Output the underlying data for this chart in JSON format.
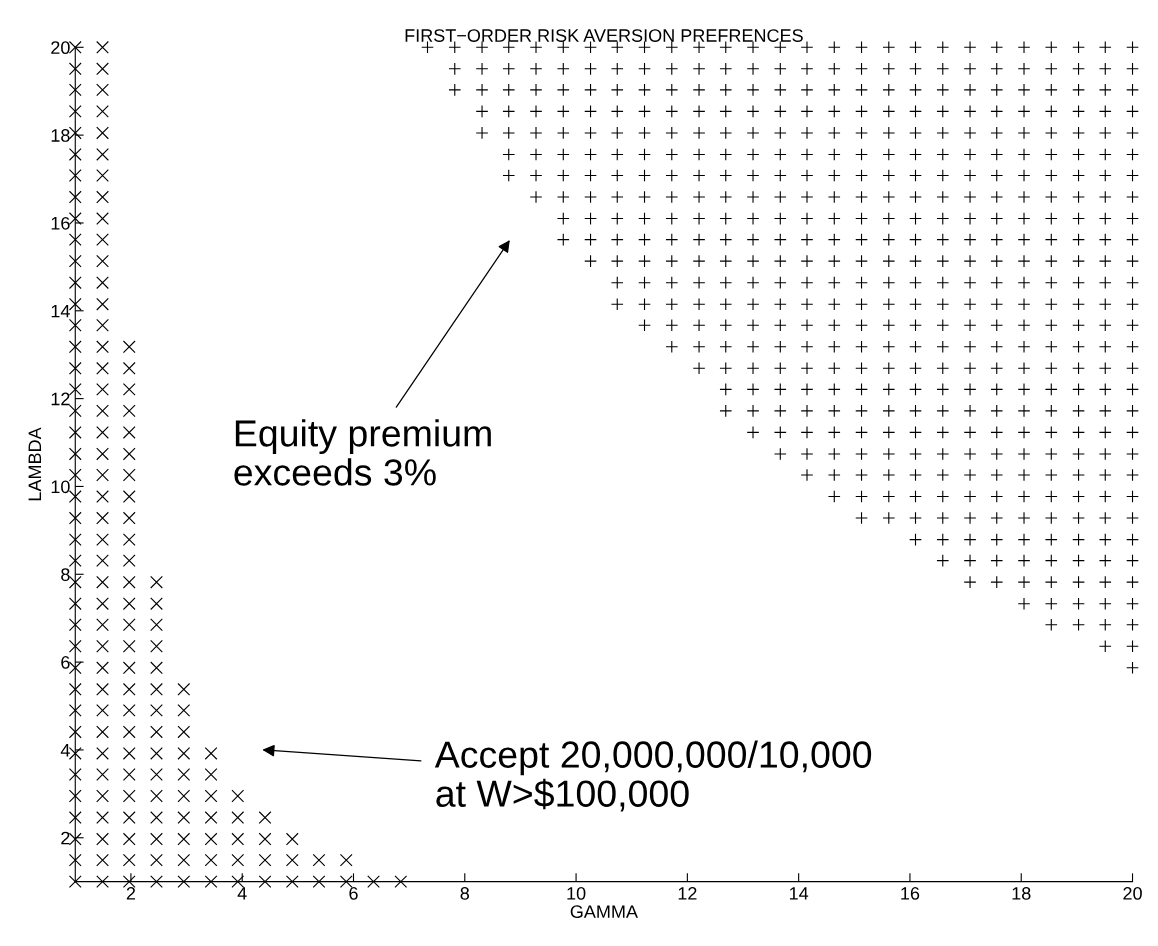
{
  "chart_data": {
    "type": "scatter",
    "title": "FIRST−ORDER RISK AVERSION PREFRENCES",
    "xlabel": "GAMMA",
    "ylabel": "LAMBDA",
    "xlim": [
      1,
      20
    ],
    "ylim": [
      1,
      20
    ],
    "xticks": [
      2,
      4,
      6,
      8,
      10,
      12,
      14,
      16,
      18,
      20
    ],
    "yticks": [
      2,
      4,
      6,
      8,
      10,
      12,
      14,
      16,
      18,
      20
    ],
    "grid": false,
    "annotations": [
      "Equity premium\nexceeds 3%",
      "Accept 20,000,000/10,000\nat W>$100,000"
    ],
    "series": [
      {
        "color": "#000000",
        "marker": "cross",
        "x": [
          1,
          1,
          1,
          1,
          1,
          1,
          1,
          1,
          1,
          1,
          1,
          1,
          1,
          1,
          1,
          1,
          1,
          1,
          1,
          1,
          1,
          1,
          1,
          1,
          1,
          1,
          1,
          1,
          1,
          1,
          1,
          1,
          1,
          1,
          1,
          1,
          1,
          1,
          1,
          1,
          1.49,
          1.49,
          1.49,
          1.49,
          1.49,
          1.49,
          1.49,
          1.49,
          1.49,
          1.49,
          1.49,
          1.49,
          1.49,
          1.49,
          1.49,
          1.49,
          1.49,
          1.49,
          1.49,
          1.49,
          1.49,
          1.49,
          1.49,
          1.49,
          1.49,
          1.49,
          1.49,
          1.49,
          1.49,
          1.49,
          1.49,
          1.49,
          1.49,
          1.49,
          1.49,
          1.49,
          1.49,
          1.49,
          1.49,
          1.49,
          1.97,
          1.97,
          1.97,
          1.97,
          1.97,
          1.97,
          1.97,
          1.97,
          1.97,
          1.97,
          1.97,
          1.97,
          1.97,
          1.97,
          1.97,
          1.97,
          1.97,
          1.97,
          1.97,
          1.97,
          1.97,
          1.97,
          1.97,
          1.97,
          1.97,
          1.97,
          2.46,
          2.46,
          2.46,
          2.46,
          2.46,
          2.46,
          2.46,
          2.46,
          2.46,
          2.46,
          2.46,
          2.46,
          2.46,
          2.46,
          2.46,
          2.95,
          2.95,
          2.95,
          2.95,
          2.95,
          2.95,
          2.95,
          2.95,
          2.95,
          2.95,
          3.44,
          3.44,
          3.44,
          3.44,
          3.44,
          3.44,
          3.44,
          3.92,
          3.92,
          3.92,
          3.92,
          3.92,
          4.41,
          4.41,
          4.41,
          4.41,
          4.9,
          4.9,
          4.9,
          5.38,
          5.38,
          5.87,
          5.87,
          6.36,
          6.85
        ],
        "values": [
          1,
          1.49,
          1.97,
          2.46,
          2.95,
          3.44,
          3.92,
          4.41,
          4.9,
          5.38,
          5.87,
          6.36,
          6.85,
          7.33,
          7.82,
          8.31,
          8.79,
          9.28,
          9.77,
          10.26,
          10.74,
          11.23,
          11.72,
          12.21,
          12.69,
          13.18,
          13.67,
          14.15,
          14.64,
          15.13,
          15.62,
          16.1,
          16.59,
          17.08,
          17.56,
          18.05,
          18.54,
          19.03,
          19.51,
          20,
          1,
          1.49,
          1.97,
          2.46,
          2.95,
          3.44,
          3.92,
          4.41,
          4.9,
          5.38,
          5.87,
          6.36,
          6.85,
          7.33,
          7.82,
          8.31,
          8.79,
          9.28,
          9.77,
          10.26,
          10.74,
          11.23,
          11.72,
          12.21,
          12.69,
          13.18,
          13.67,
          14.15,
          14.64,
          15.13,
          15.62,
          16.1,
          16.59,
          17.08,
          17.56,
          18.05,
          18.54,
          19.03,
          19.51,
          20,
          1,
          1.49,
          1.97,
          2.46,
          2.95,
          3.44,
          3.92,
          4.41,
          4.9,
          5.38,
          5.87,
          6.36,
          6.85,
          7.33,
          7.82,
          8.31,
          8.79,
          9.28,
          9.77,
          10.26,
          10.74,
          11.23,
          11.72,
          12.21,
          12.69,
          13.18,
          1,
          1.49,
          1.97,
          2.46,
          2.95,
          3.44,
          3.92,
          4.41,
          4.9,
          5.38,
          5.87,
          6.36,
          6.85,
          7.33,
          7.82,
          1,
          1.49,
          1.97,
          2.46,
          2.95,
          3.44,
          3.92,
          4.41,
          4.9,
          5.38,
          1,
          1.49,
          1.97,
          2.46,
          2.95,
          3.44,
          3.92,
          1,
          1.49,
          1.97,
          2.46,
          2.95,
          1,
          1.49,
          1.97,
          2.46,
          1,
          1.49,
          1.97,
          1,
          1.49,
          1,
          1.49,
          1,
          1
        ]
      },
      {
        "color": "#000000",
        "marker": "plus",
        "x": [
          7.33,
          7.82,
          7.82,
          7.82,
          8.31,
          8.31,
          8.31,
          8.31,
          8.31,
          8.79,
          8.79,
          8.79,
          8.79,
          8.79,
          8.79,
          8.79,
          9.28,
          9.28,
          9.28,
          9.28,
          9.28,
          9.28,
          9.28,
          9.28,
          9.77,
          9.77,
          9.77,
          9.77,
          9.77,
          9.77,
          9.77,
          9.77,
          9.77,
          9.77,
          10.26,
          10.26,
          10.26,
          10.26,
          10.26,
          10.26,
          10.26,
          10.26,
          10.26,
          10.26,
          10.26,
          10.74,
          10.74,
          10.74,
          10.74,
          10.74,
          10.74,
          10.74,
          10.74,
          10.74,
          10.74,
          10.74,
          10.74,
          10.74,
          11.23,
          11.23,
          11.23,
          11.23,
          11.23,
          11.23,
          11.23,
          11.23,
          11.23,
          11.23,
          11.23,
          11.23,
          11.23,
          11.23,
          11.72,
          11.72,
          11.72,
          11.72,
          11.72,
          11.72,
          11.72,
          11.72,
          11.72,
          11.72,
          11.72,
          11.72,
          11.72,
          11.72,
          11.72,
          12.21,
          12.21,
          12.21,
          12.21,
          12.21,
          12.21,
          12.21,
          12.21,
          12.21,
          12.21,
          12.21,
          12.21,
          12.21,
          12.21,
          12.21,
          12.21,
          12.69,
          12.69,
          12.69,
          12.69,
          12.69,
          12.69,
          12.69,
          12.69,
          12.69,
          12.69,
          12.69,
          12.69,
          12.69,
          12.69,
          12.69,
          12.69,
          12.69,
          12.69,
          13.18,
          13.18,
          13.18,
          13.18,
          13.18,
          13.18,
          13.18,
          13.18,
          13.18,
          13.18,
          13.18,
          13.18,
          13.18,
          13.18,
          13.18,
          13.18,
          13.18,
          13.18,
          13.18,
          13.67,
          13.67,
          13.67,
          13.67,
          13.67,
          13.67,
          13.67,
          13.67,
          13.67,
          13.67,
          13.67,
          13.67,
          13.67,
          13.67,
          13.67,
          13.67,
          13.67,
          13.67,
          13.67,
          13.67,
          14.15,
          14.15,
          14.15,
          14.15,
          14.15,
          14.15,
          14.15,
          14.15,
          14.15,
          14.15,
          14.15,
          14.15,
          14.15,
          14.15,
          14.15,
          14.15,
          14.15,
          14.15,
          14.15,
          14.15,
          14.15,
          14.64,
          14.64,
          14.64,
          14.64,
          14.64,
          14.64,
          14.64,
          14.64,
          14.64,
          14.64,
          14.64,
          14.64,
          14.64,
          14.64,
          14.64,
          14.64,
          14.64,
          14.64,
          14.64,
          14.64,
          14.64,
          14.64,
          15.13,
          15.13,
          15.13,
          15.13,
          15.13,
          15.13,
          15.13,
          15.13,
          15.13,
          15.13,
          15.13,
          15.13,
          15.13,
          15.13,
          15.13,
          15.13,
          15.13,
          15.13,
          15.13,
          15.13,
          15.13,
          15.13,
          15.13,
          15.62,
          15.62,
          15.62,
          15.62,
          15.62,
          15.62,
          15.62,
          15.62,
          15.62,
          15.62,
          15.62,
          15.62,
          15.62,
          15.62,
          15.62,
          15.62,
          15.62,
          15.62,
          15.62,
          15.62,
          15.62,
          15.62,
          15.62,
          16.1,
          16.1,
          16.1,
          16.1,
          16.1,
          16.1,
          16.1,
          16.1,
          16.1,
          16.1,
          16.1,
          16.1,
          16.1,
          16.1,
          16.1,
          16.1,
          16.1,
          16.1,
          16.1,
          16.1,
          16.1,
          16.1,
          16.1,
          16.1,
          16.59,
          16.59,
          16.59,
          16.59,
          16.59,
          16.59,
          16.59,
          16.59,
          16.59,
          16.59,
          16.59,
          16.59,
          16.59,
          16.59,
          16.59,
          16.59,
          16.59,
          16.59,
          16.59,
          16.59,
          16.59,
          16.59,
          16.59,
          16.59,
          16.59,
          17.08,
          17.08,
          17.08,
          17.08,
          17.08,
          17.08,
          17.08,
          17.08,
          17.08,
          17.08,
          17.08,
          17.08,
          17.08,
          17.08,
          17.08,
          17.08,
          17.08,
          17.08,
          17.08,
          17.08,
          17.08,
          17.08,
          17.08,
          17.08,
          17.08,
          17.08,
          17.56,
          17.56,
          17.56,
          17.56,
          17.56,
          17.56,
          17.56,
          17.56,
          17.56,
          17.56,
          17.56,
          17.56,
          17.56,
          17.56,
          17.56,
          17.56,
          17.56,
          17.56,
          17.56,
          17.56,
          17.56,
          17.56,
          17.56,
          17.56,
          17.56,
          17.56,
          18.05,
          18.05,
          18.05,
          18.05,
          18.05,
          18.05,
          18.05,
          18.05,
          18.05,
          18.05,
          18.05,
          18.05,
          18.05,
          18.05,
          18.05,
          18.05,
          18.05,
          18.05,
          18.05,
          18.05,
          18.05,
          18.05,
          18.05,
          18.05,
          18.05,
          18.05,
          18.05,
          18.54,
          18.54,
          18.54,
          18.54,
          18.54,
          18.54,
          18.54,
          18.54,
          18.54,
          18.54,
          18.54,
          18.54,
          18.54,
          18.54,
          18.54,
          18.54,
          18.54,
          18.54,
          18.54,
          18.54,
          18.54,
          18.54,
          18.54,
          18.54,
          18.54,
          18.54,
          18.54,
          18.54,
          19.03,
          19.03,
          19.03,
          19.03,
          19.03,
          19.03,
          19.03,
          19.03,
          19.03,
          19.03,
          19.03,
          19.03,
          19.03,
          19.03,
          19.03,
          19.03,
          19.03,
          19.03,
          19.03,
          19.03,
          19.03,
          19.03,
          19.03,
          19.03,
          19.03,
          19.03,
          19.03,
          19.03,
          19.51,
          19.51,
          19.51,
          19.51,
          19.51,
          19.51,
          19.51,
          19.51,
          19.51,
          19.51,
          19.51,
          19.51,
          19.51,
          19.51,
          19.51,
          19.51,
          19.51,
          19.51,
          19.51,
          19.51,
          19.51,
          19.51,
          19.51,
          19.51,
          19.51,
          19.51,
          19.51,
          19.51,
          19.51,
          20,
          20,
          20,
          20,
          20,
          20,
          20,
          20,
          20,
          20,
          20,
          20,
          20,
          20,
          20,
          20,
          20,
          20,
          20,
          20,
          20,
          20,
          20,
          20,
          20,
          20,
          20,
          20,
          20,
          20
        ],
        "values": [
          20,
          19.03,
          19.51,
          20,
          18.05,
          18.54,
          19.03,
          19.51,
          20,
          17.08,
          17.56,
          18.05,
          18.54,
          19.03,
          19.51,
          20,
          16.59,
          17.08,
          17.56,
          18.05,
          18.54,
          19.03,
          19.51,
          20,
          15.62,
          16.1,
          16.59,
          17.08,
          17.56,
          18.05,
          18.54,
          19.03,
          19.51,
          20,
          15.13,
          15.62,
          16.1,
          16.59,
          17.08,
          17.56,
          18.05,
          18.54,
          19.03,
          19.51,
          20,
          14.15,
          14.64,
          15.13,
          15.62,
          16.1,
          16.59,
          17.08,
          17.56,
          18.05,
          18.54,
          19.03,
          19.51,
          20,
          13.67,
          14.15,
          14.64,
          15.13,
          15.62,
          16.1,
          16.59,
          17.08,
          17.56,
          18.05,
          18.54,
          19.03,
          19.51,
          20,
          13.18,
          13.67,
          14.15,
          14.64,
          15.13,
          15.62,
          16.1,
          16.59,
          17.08,
          17.56,
          18.05,
          18.54,
          19.03,
          19.51,
          20,
          12.69,
          13.18,
          13.67,
          14.15,
          14.64,
          15.13,
          15.62,
          16.1,
          16.59,
          17.08,
          17.56,
          18.05,
          18.54,
          19.03,
          19.51,
          20,
          11.72,
          12.21,
          12.69,
          13.18,
          13.67,
          14.15,
          14.64,
          15.13,
          15.62,
          16.1,
          16.59,
          17.08,
          17.56,
          18.05,
          18.54,
          19.03,
          19.51,
          20,
          11.23,
          11.72,
          12.21,
          12.69,
          13.18,
          13.67,
          14.15,
          14.64,
          15.13,
          15.62,
          16.1,
          16.59,
          17.08,
          17.56,
          18.05,
          18.54,
          19.03,
          19.51,
          20,
          10.74,
          11.23,
          11.72,
          12.21,
          12.69,
          13.18,
          13.67,
          14.15,
          14.64,
          15.13,
          15.62,
          16.1,
          16.59,
          17.08,
          17.56,
          18.05,
          18.54,
          19.03,
          19.51,
          20,
          10.26,
          10.74,
          11.23,
          11.72,
          12.21,
          12.69,
          13.18,
          13.67,
          14.15,
          14.64,
          15.13,
          15.62,
          16.1,
          16.59,
          17.08,
          17.56,
          18.05,
          18.54,
          19.03,
          19.51,
          20,
          9.77,
          10.26,
          10.74,
          11.23,
          11.72,
          12.21,
          12.69,
          13.18,
          13.67,
          14.15,
          14.64,
          15.13,
          15.62,
          16.1,
          16.59,
          17.08,
          17.56,
          18.05,
          18.54,
          19.03,
          19.51,
          20,
          9.28,
          9.77,
          10.26,
          10.74,
          11.23,
          11.72,
          12.21,
          12.69,
          13.18,
          13.67,
          14.15,
          14.64,
          15.13,
          15.62,
          16.1,
          16.59,
          17.08,
          17.56,
          18.05,
          18.54,
          19.03,
          19.51,
          20,
          9.28,
          9.77,
          10.26,
          10.74,
          11.23,
          11.72,
          12.21,
          12.69,
          13.18,
          13.67,
          14.15,
          14.64,
          15.13,
          15.62,
          16.1,
          16.59,
          17.08,
          17.56,
          18.05,
          18.54,
          19.03,
          19.51,
          20,
          8.79,
          9.28,
          9.77,
          10.26,
          10.74,
          11.23,
          11.72,
          12.21,
          12.69,
          13.18,
          13.67,
          14.15,
          14.64,
          15.13,
          15.62,
          16.1,
          16.59,
          17.08,
          17.56,
          18.05,
          18.54,
          19.03,
          19.51,
          20,
          8.31,
          8.79,
          9.28,
          9.77,
          10.26,
          10.74,
          11.23,
          11.72,
          12.21,
          12.69,
          13.18,
          13.67,
          14.15,
          14.64,
          15.13,
          15.62,
          16.1,
          16.59,
          17.08,
          17.56,
          18.05,
          18.54,
          19.03,
          19.51,
          20,
          7.82,
          8.31,
          8.79,
          9.28,
          9.77,
          10.26,
          10.74,
          11.23,
          11.72,
          12.21,
          12.69,
          13.18,
          13.67,
          14.15,
          14.64,
          15.13,
          15.62,
          16.1,
          16.59,
          17.08,
          17.56,
          18.05,
          18.54,
          19.03,
          19.51,
          20,
          7.82,
          8.31,
          8.79,
          9.28,
          9.77,
          10.26,
          10.74,
          11.23,
          11.72,
          12.21,
          12.69,
          13.18,
          13.67,
          14.15,
          14.64,
          15.13,
          15.62,
          16.1,
          16.59,
          17.08,
          17.56,
          18.05,
          18.54,
          19.03,
          19.51,
          20,
          7.33,
          7.82,
          8.31,
          8.79,
          9.28,
          9.77,
          10.26,
          10.74,
          11.23,
          11.72,
          12.21,
          12.69,
          13.18,
          13.67,
          14.15,
          14.64,
          15.13,
          15.62,
          16.1,
          16.59,
          17.08,
          17.56,
          18.05,
          18.54,
          19.03,
          19.51,
          20,
          6.85,
          7.33,
          7.82,
          8.31,
          8.79,
          9.28,
          9.77,
          10.26,
          10.74,
          11.23,
          11.72,
          12.21,
          12.69,
          13.18,
          13.67,
          14.15,
          14.64,
          15.13,
          15.62,
          16.1,
          16.59,
          17.08,
          17.56,
          18.05,
          18.54,
          19.03,
          19.51,
          20,
          6.85,
          7.33,
          7.82,
          8.31,
          8.79,
          9.28,
          9.77,
          10.26,
          10.74,
          11.23,
          11.72,
          12.21,
          12.69,
          13.18,
          13.67,
          14.15,
          14.64,
          15.13,
          15.62,
          16.1,
          16.59,
          17.08,
          17.56,
          18.05,
          18.54,
          19.03,
          19.51,
          20,
          6.36,
          6.85,
          7.33,
          7.82,
          8.31,
          8.79,
          9.28,
          9.77,
          10.26,
          10.74,
          11.23,
          11.72,
          12.21,
          12.69,
          13.18,
          13.67,
          14.15,
          14.64,
          15.13,
          15.62,
          16.1,
          16.59,
          17.08,
          17.56,
          18.05,
          18.54,
          19.03,
          19.51,
          20,
          5.87,
          6.36,
          6.85,
          7.33,
          7.82,
          8.31,
          8.79,
          9.28,
          9.77,
          10.26,
          10.74,
          11.23,
          11.72,
          12.21,
          12.69,
          13.18,
          13.67,
          14.15,
          14.64,
          15.13,
          15.62,
          16.1,
          16.59,
          17.08,
          17.56,
          18.05,
          18.54,
          19.03,
          19.51,
          20
        ]
      }
    ]
  }
}
